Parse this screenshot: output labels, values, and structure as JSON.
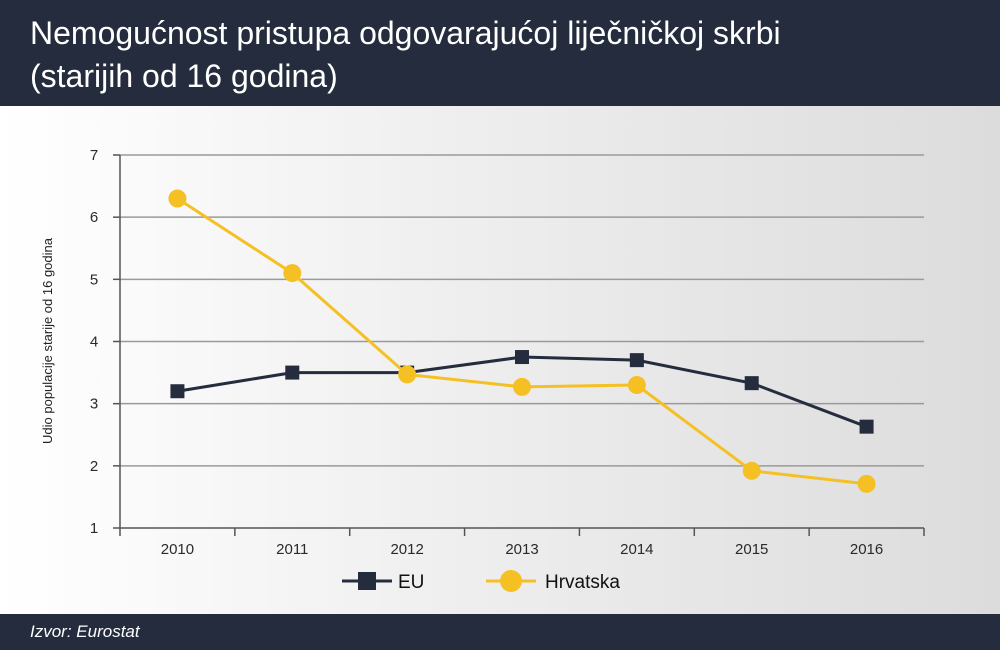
{
  "header": {
    "title_line1": "Nemogućnost pristupa odgovarajućoj liječničkoj skrbi",
    "title_line2": "(starijih od 16 godina)"
  },
  "footer": {
    "source": "Izvor: Eurostat"
  },
  "chart_data": {
    "type": "line",
    "title": "Nemogućnost pristupa odgovarajućoj liječničkoj skrbi (starijih od 16 godina)",
    "ylabel": "Udio populacije starije od 16 godina",
    "xlabel": "",
    "categories": [
      "2010",
      "2011",
      "2012",
      "2013",
      "2014",
      "2015",
      "2016"
    ],
    "ylim": [
      1,
      7
    ],
    "yticks": [
      1,
      2,
      3,
      4,
      5,
      6,
      7
    ],
    "grid": true,
    "legend": "bottom",
    "series": [
      {
        "name": "EU",
        "marker": "square",
        "color": "#242c3d",
        "values": [
          3.2,
          3.5,
          3.5,
          3.75,
          3.7,
          3.33,
          2.63
        ]
      },
      {
        "name": "Hrvatska",
        "marker": "circle",
        "color": "#f5c024",
        "values": [
          6.3,
          5.1,
          3.47,
          3.27,
          3.3,
          1.92,
          1.71
        ]
      }
    ]
  }
}
